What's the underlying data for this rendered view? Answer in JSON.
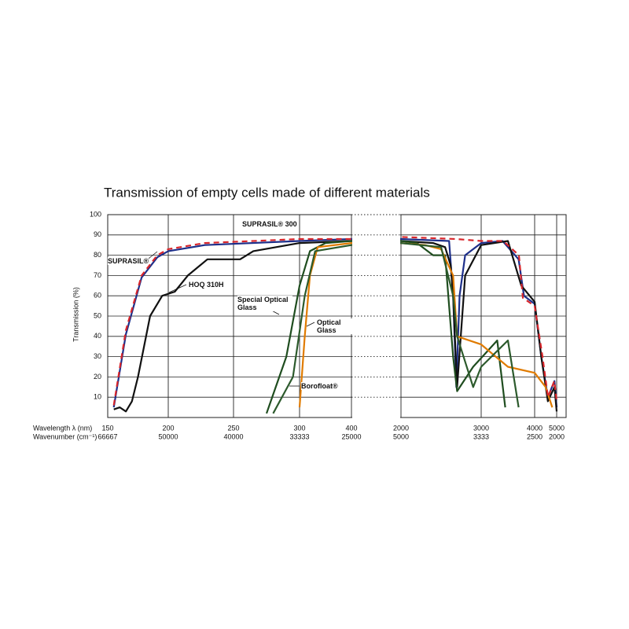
{
  "chart_data": {
    "type": "line",
    "title": "Transmission of empty cells made of different materials",
    "y_label": "Transmission (%)",
    "x_label": "Wavelength λ (nm)",
    "secondary_x_label": "Wavenumber (cm⁻¹)",
    "ylim": [
      0,
      100
    ],
    "yticks": [
      10,
      20,
      30,
      40,
      50,
      60,
      70,
      80,
      90,
      100
    ],
    "xlim": [
      150,
      5000
    ],
    "xticks": [
      150,
      200,
      250,
      300,
      400,
      2000,
      3000,
      4000,
      5000
    ],
    "secondary_xticks": [
      66667,
      50000,
      40000,
      33333,
      25000,
      5000,
      3333,
      2500,
      2000
    ],
    "grid": true,
    "series": [
      {
        "name": "SUPRASIL® 300",
        "color": "#d8262b",
        "style": "dashed",
        "x": [
          155,
          165,
          178,
          191,
          200,
          228,
          300,
          400,
          2000,
          2686,
          3000,
          3412,
          3706,
          3780,
          4000,
          4357,
          4607,
          4893,
          5000
        ],
        "values": [
          6,
          43,
          70,
          80,
          83,
          86,
          88,
          88,
          89,
          88,
          87,
          87,
          80,
          59,
          55,
          30,
          10,
          18,
          8
        ]
      },
      {
        "name": "SUPRASIL®",
        "color": "#1d2f8a",
        "style": "solid",
        "x": [
          155,
          165,
          178,
          191,
          200,
          228,
          300,
          400,
          2000,
          2600,
          2650,
          2690,
          2730,
          2800,
          3000,
          3400,
          3700,
          3800,
          4000,
          4300,
          4600,
          4900,
          5000
        ],
        "values": [
          5,
          41,
          69,
          79,
          82,
          85,
          87,
          88,
          88,
          87,
          60,
          15,
          60,
          80,
          86,
          87,
          78,
          60,
          56,
          30,
          10,
          18,
          5
        ]
      },
      {
        "name": "HOQ 310H",
        "color": "#111111",
        "style": "solid",
        "x": [
          155,
          160,
          165,
          170,
          175,
          185,
          195,
          205,
          215,
          230,
          245,
          255,
          265,
          300,
          400,
          2000,
          2400,
          2550,
          2620,
          2650,
          2700,
          2800,
          3000,
          3500,
          3750,
          4000,
          4300,
          4600,
          4900,
          5000
        ],
        "values": [
          4,
          5,
          3,
          8,
          20,
          50,
          60,
          62,
          70,
          78,
          78,
          78,
          82,
          86,
          87,
          87,
          86,
          84,
          75,
          60,
          15,
          70,
          85,
          87,
          65,
          57,
          30,
          8,
          15,
          3
        ]
      },
      {
        "name": "Special Optical Glass",
        "color": "#1f4d1f",
        "style": "solid",
        "x": [
          275,
          290,
          300,
          320,
          350,
          400,
          2000,
          2200,
          2400,
          2550,
          2650,
          2700,
          2900,
          3300,
          3450
        ],
        "values": [
          2,
          30,
          65,
          82,
          86,
          87,
          87,
          86,
          80,
          80,
          30,
          13,
          25,
          38,
          5
        ]
      },
      {
        "name": "Optical Glass",
        "color": "#e07b00",
        "style": "solid",
        "x": [
          300,
          310,
          320,
          335,
          400,
          2000,
          2300,
          2500,
          2650,
          2700,
          3000,
          3500,
          4000,
          4500,
          4800
        ],
        "values": [
          5,
          40,
          70,
          84,
          86,
          86,
          85,
          83,
          70,
          40,
          36,
          25,
          22,
          15,
          5
        ]
      },
      {
        "name": "Borofloat®",
        "color": "#2c5a2c",
        "style": "solid",
        "x": [
          280,
          295,
          310,
          330,
          400,
          2000,
          2500,
          2650,
          2700,
          2900,
          3000,
          3500,
          3700
        ],
        "values": [
          2,
          20,
          60,
          82,
          85,
          86,
          84,
          60,
          40,
          15,
          25,
          38,
          5
        ]
      }
    ]
  }
}
